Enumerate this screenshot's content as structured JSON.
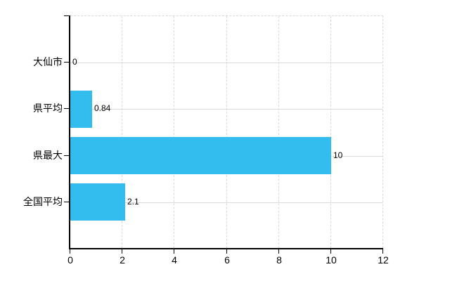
{
  "chart_data": {
    "type": "bar",
    "orientation": "horizontal",
    "title": "",
    "xlabel": "",
    "ylabel": "",
    "categories": [
      "大仙市",
      "県平均",
      "県最大",
      "全国平均"
    ],
    "values": [
      0,
      0.84,
      10,
      2.1
    ],
    "value_labels": [
      "0",
      "0.84",
      "10",
      "2.1"
    ],
    "xlim": [
      0,
      12
    ],
    "x_ticks": [
      0,
      2,
      4,
      6,
      8,
      10,
      12
    ],
    "x_tick_labels": [
      "0",
      "2",
      "4",
      "6",
      "8",
      "10",
      "12"
    ],
    "legend": null,
    "grid": true,
    "colors": {
      "bar": "#33bdef",
      "axis": "#000000",
      "grid_horizontal": "#d5ddd5",
      "grid_vertical": "#d9d9d9",
      "border_dashed": "#d9d9d9",
      "background": "#ffffff",
      "text": "#000000"
    }
  }
}
